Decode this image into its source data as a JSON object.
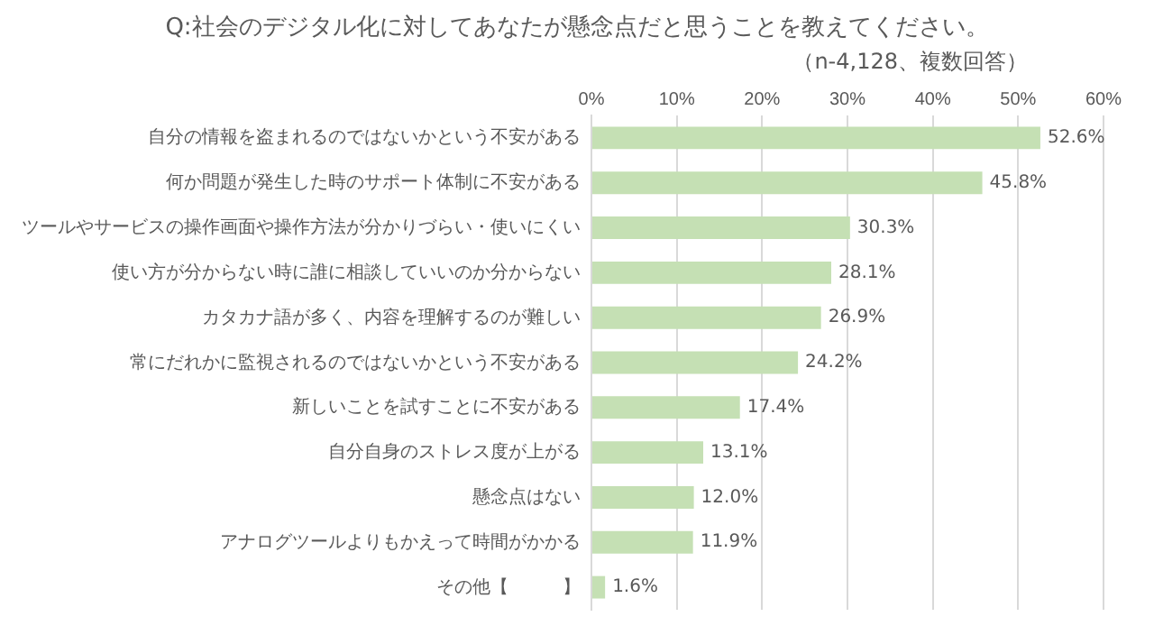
{
  "chart_data": {
    "type": "bar",
    "orientation": "horizontal",
    "title": "Q:社会のデジタル化に対してあなたが懸念点だと思うことを教えてください。",
    "subtitle": "（n-4,128、複数回答）",
    "categories": [
      "自分の情報を盗まれるのではないかという不安がある",
      "何か問題が発生した時のサポート体制に不安がある",
      "ツールやサービスの操作画面や操作方法が分かりづらい・使いにくい",
      "使い方が分からない時に誰に相談していいのか分からない",
      "カタカナ語が多く、内容を理解するのが難しい",
      "常にだれかに監視されるのではないかという不安がある",
      "新しいことを試すことに不安がある",
      "自分自身のストレス度が上がる",
      "懸念点はない",
      "アナログツールよりもかえって時間がかかる",
      "その他【　　　】"
    ],
    "values": [
      52.6,
      45.8,
      30.3,
      28.1,
      26.9,
      24.2,
      17.4,
      13.1,
      12.0,
      11.9,
      1.6
    ],
    "value_labels": [
      "52.6%",
      "45.8%",
      "30.3%",
      "28.1%",
      "26.9%",
      "24.2%",
      "17.4%",
      "13.1%",
      "12.0%",
      "11.9%",
      "1.6%"
    ],
    "color": "#c5e0b4",
    "xlim": [
      0,
      60
    ],
    "xticks": [
      {
        "value": 0,
        "label": "0%"
      },
      {
        "value": 10,
        "label": "10%"
      },
      {
        "value": 20,
        "label": "20%"
      },
      {
        "value": 30,
        "label": "30%"
      },
      {
        "value": 40,
        "label": "40%"
      },
      {
        "value": 50,
        "label": "50%"
      },
      {
        "value": 60,
        "label": "60%"
      }
    ],
    "grid": "x",
    "legend": false
  }
}
